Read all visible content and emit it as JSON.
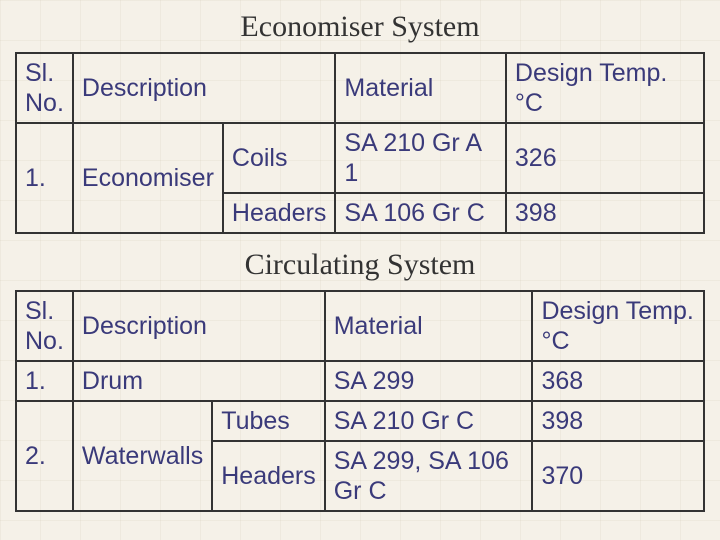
{
  "titles": {
    "economiser": "Economiser System",
    "circulating": "Circulating System"
  },
  "headers": {
    "slno": "Sl. No.",
    "description": "Description",
    "material": "Material",
    "designTemp": "Design Temp. °C"
  },
  "table1": {
    "rows": [
      {
        "no": "1.",
        "desc": "Economiser",
        "part1": "Coils",
        "mat1": "SA 210 Gr A 1",
        "temp1": "326",
        "part2": "Headers",
        "mat2": "SA 106 Gr C",
        "temp2": "398"
      }
    ]
  },
  "table2": {
    "rows": [
      {
        "no": "1.",
        "desc": "Drum",
        "mat": "SA 299",
        "temp": "368"
      }
    ],
    "row2": {
      "no": "2.",
      "desc": "Waterwalls",
      "part1": "Tubes",
      "mat1": "SA 210 Gr C",
      "temp1": "398",
      "part2": "Headers",
      "mat2": "SA 299, SA 106 Gr C",
      "temp2": "370"
    }
  },
  "colors": {
    "text": "#3a3a7a",
    "border": "#333",
    "bg": "#f5f1e8"
  }
}
